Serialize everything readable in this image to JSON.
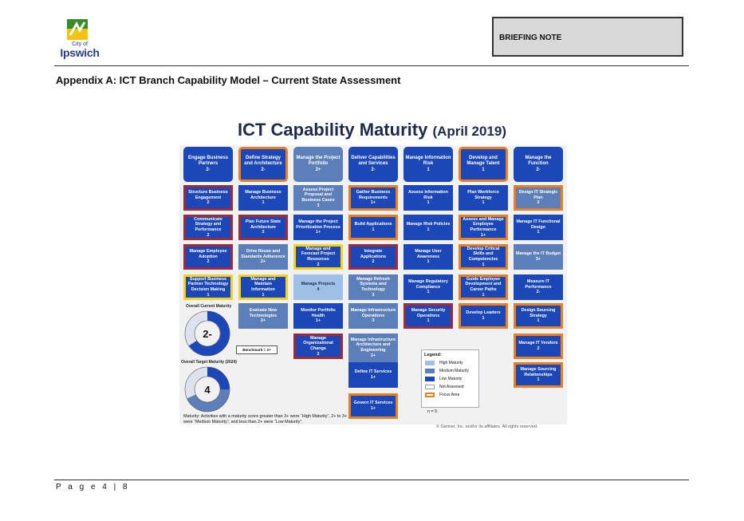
{
  "logo": {
    "city": "City of",
    "name": "Ipswich"
  },
  "header": {
    "briefing": "BRIEFING NOTE"
  },
  "appendix_title": "Appendix A:  ICT Branch Capability Model – Current State Assessment",
  "figure": {
    "title": "ICT Capability Maturity",
    "title_sub": "(April 2019)",
    "colors": {
      "low": "#1c47b8",
      "medium": "#5d7fb9",
      "high": "#9ec0e6",
      "focus": "#e87f24"
    },
    "columns": [
      {
        "label": "Engage Business Partners",
        "level": "2-"
      },
      {
        "label": "Define Strategy and Architecture",
        "level": "2-"
      },
      {
        "label": "Manage the Project Portfolio",
        "level": "2+"
      },
      {
        "label": "Deliver Capabilities and Services",
        "level": "2-"
      },
      {
        "label": "Manage Information Risk",
        "level": "1"
      },
      {
        "label": "Develop and Manage Talent",
        "level": "1"
      },
      {
        "label": "Manage the Function",
        "level": "2-"
      }
    ],
    "capabilities": [
      [
        {
          "label": "Structure Business Engagement",
          "level": "2"
        },
        {
          "label": "Communicate Strategy and Performance",
          "level": "2"
        },
        {
          "label": "Manage Employee Adoption",
          "level": "2"
        },
        {
          "label": "Support Business Partner Technology Decision Making",
          "level": "1"
        }
      ],
      [
        {
          "label": "Manage Business Architecture",
          "level": "1"
        },
        {
          "label": "Plan Future State Architecture",
          "level": "2"
        },
        {
          "label": "Drive Reuse and Standards Adherence",
          "level": "2+"
        },
        {
          "label": "Manage and Maintain Information",
          "level": "1"
        },
        {
          "label": "Evaluate New Technologies",
          "level": "2+"
        }
      ],
      [
        {
          "label": "Assess Project Proposal and Business Cases",
          "level": "3"
        },
        {
          "label": "Manage the Project Prioritization Process",
          "level": "1+"
        },
        {
          "label": "Manage and Forecast Project Resources",
          "level": "2"
        },
        {
          "label": "Manage Projects",
          "level": "4"
        },
        {
          "label": "Monitor Portfolio Health",
          "level": "1+"
        },
        {
          "label": "Manage Organizational Change",
          "level": "2"
        }
      ],
      [
        {
          "label": "Gather Business Requirements",
          "level": "1+"
        },
        {
          "label": "Build Applications",
          "level": "1"
        },
        {
          "label": "Integrate Applications",
          "level": "2"
        },
        {
          "label": "Manage Refresh Systems and Technology",
          "level": "3"
        },
        {
          "label": "Manage Infrastructure Operations",
          "level": "3"
        },
        {
          "label": "Manage Infrastructure Architecture and Engineering",
          "level": "2+"
        },
        {
          "label": "Define IT Services",
          "level": "1+"
        },
        {
          "label": "Govern IT Services",
          "level": "1+"
        }
      ],
      [
        {
          "label": "Assess Information Risk",
          "level": "1"
        },
        {
          "label": "Manage Risk Policies",
          "level": "1"
        },
        {
          "label": "Manage User Awareness",
          "level": "1"
        },
        {
          "label": "Manage Regulatory Compliance",
          "level": "1"
        },
        {
          "label": "Manage Security Operations",
          "level": "1"
        }
      ],
      [
        {
          "label": "Plan Workforce Strategy",
          "level": "1"
        },
        {
          "label": "Assess and Manage Employee Performance",
          "level": "1+"
        },
        {
          "label": "Develop Critical Skills and Competencies",
          "level": "1"
        },
        {
          "label": "Guide Employee Development and Career Paths",
          "level": "1"
        },
        {
          "label": "Develop Leaders",
          "level": "1"
        }
      ],
      [
        {
          "label": "Design IT Strategic Plan",
          "level": "2"
        },
        {
          "label": "Manage IT Functional Design",
          "level": "1"
        },
        {
          "label": "Manage the IT Budget",
          "level": "3+"
        },
        {
          "label": "Measure IT Performance",
          "level": "2-"
        },
        {
          "label": "Design Sourcing Strategy",
          "level": "1"
        },
        {
          "label": "Manage IT Vendors",
          "level": "2"
        },
        {
          "label": "Manage Sourcing Relationships",
          "level": "1"
        }
      ]
    ],
    "current": {
      "label": "Overall Current Maturity",
      "value": "2-"
    },
    "target": {
      "label": "Overall Target Maturity (2024)",
      "value": "4"
    },
    "benchmark": "Benchmark = 2+",
    "maturity_note": "Maturity: Activities with a maturity score greater than 3+ were “High Maturity”, 2+ to 3+ were “Medium Maturity”, and less than 2+ were “Low Maturity”.",
    "legend": {
      "title": "Legend:",
      "items": [
        "High Maturity",
        "Medium Maturity",
        "Low Maturity",
        "Not Assessed",
        "Focus Area"
      ]
    },
    "n_note": "n = 5",
    "copyright": "© Gartner, Inc. and/or its affiliates. All rights reserved."
  },
  "footer": "P a g e  4 | 8"
}
